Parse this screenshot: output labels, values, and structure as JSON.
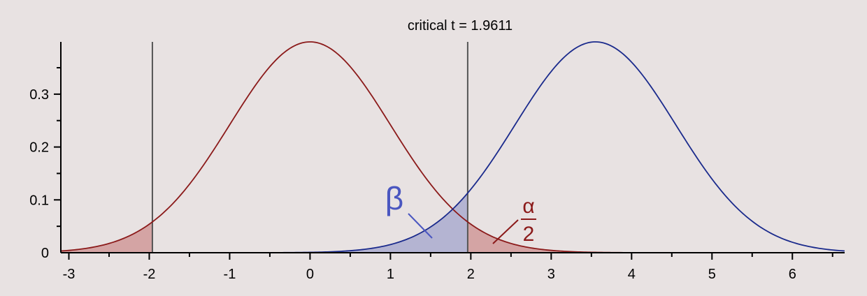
{
  "chart_data": {
    "type": "area",
    "title": "critical t = 1.9611",
    "xlabel": "",
    "ylabel": "",
    "xlim": [
      -3.1,
      6.65
    ],
    "ylim": [
      0,
      0.4
    ],
    "x_ticks": [
      "-3",
      "-2",
      "-1",
      "0",
      "1",
      "2",
      "3",
      "4",
      "5",
      "6"
    ],
    "y_ticks": [
      "0",
      "0.1",
      "0.2",
      "0.3"
    ],
    "critical_value": 1.9611,
    "series": [
      {
        "mean": 0,
        "sd": 1,
        "color": "#8b1a1a",
        "shade_color": "#d4a4a4"
      },
      {
        "mean": 3.55,
        "sd": 1,
        "color": "#1a2a8c",
        "shade_color": "#b4b4d2"
      }
    ],
    "annotations": {
      "beta": {
        "text": "β",
        "color": "#4a56c0"
      },
      "alpha": {
        "numerator": "α",
        "denominator": "2",
        "color": "#8b1a1a"
      }
    }
  }
}
